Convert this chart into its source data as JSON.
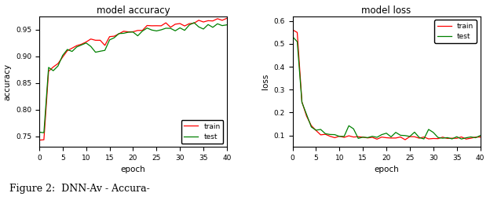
{
  "title_acc": "model accuracy",
  "title_loss": "model loss",
  "xlabel": "epoch",
  "ylabel_acc": "accuracy",
  "ylabel_loss": "loss",
  "legend_train": "train",
  "legend_test": "test",
  "color_train": "#FF0000",
  "color_test": "#008000",
  "epochs": 40,
  "background": "#FFFFFF",
  "acc_ylim_low": 0.73,
  "acc_ylim_high": 0.975,
  "loss_ylim_low": 0.05,
  "loss_ylim_high": 0.62,
  "figure_caption": "Figure 2:  DNN-Av - Accura-"
}
